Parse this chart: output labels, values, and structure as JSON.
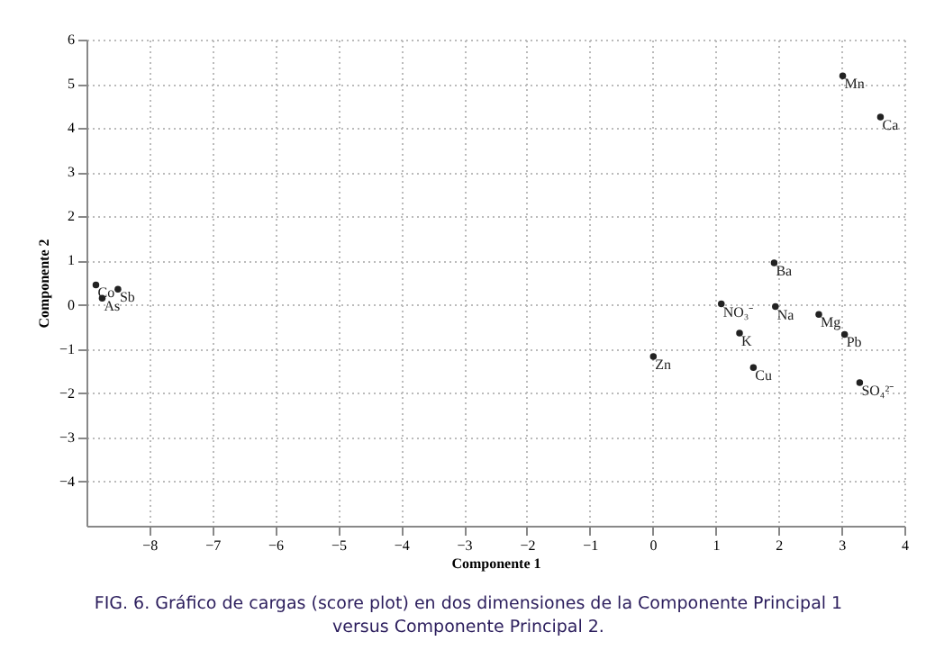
{
  "chart_data": {
    "type": "scatter",
    "xlabel": "Componente 1",
    "ylabel": "Componente 2",
    "x": [
      -8.85,
      -8.5,
      -8.75,
      3.02,
      3.62,
      1.93,
      1.09,
      1.95,
      2.64,
      3.05,
      1.38,
      0.01,
      1.6,
      3.29
    ],
    "series": [
      {
        "color": "#222222",
        "values": [
          0.45,
          0.35,
          0.15,
          5.18,
          4.25,
          0.95,
          0.02,
          -0.04,
          -0.22,
          -0.67,
          -0.64,
          -1.17,
          -1.42,
          -1.76
        ]
      }
    ],
    "xlim": [
      -9,
      4
    ],
    "xticks": [
      -8,
      -7,
      -6,
      -5,
      -4,
      -3,
      -2,
      -1,
      0,
      1,
      2,
      3,
      4
    ],
    "ylim": [
      -5,
      6
    ],
    "yticks": [
      -4,
      -3,
      -2,
      -1,
      0,
      1,
      2,
      3,
      4,
      5,
      6
    ],
    "grid": true,
    "marker": "circle",
    "annotations": [
      {
        "text": "Co",
        "x": -8.85,
        "y": 0.45
      },
      {
        "text": "Sb",
        "x": -8.5,
        "y": 0.35
      },
      {
        "text": "As",
        "x": -8.75,
        "y": 0.15
      },
      {
        "text": "Mn",
        "x": 3.02,
        "y": 5.18
      },
      {
        "text": "Ca",
        "x": 3.62,
        "y": 4.25
      },
      {
        "text": "Ba",
        "x": 1.93,
        "y": 0.95
      },
      {
        "text": "NO₃⁻",
        "x": 1.09,
        "y": 0.02
      },
      {
        "text": "Na",
        "x": 1.95,
        "y": -0.04
      },
      {
        "text": "Mg",
        "x": 2.64,
        "y": -0.22
      },
      {
        "text": "Pb",
        "x": 3.05,
        "y": -0.67
      },
      {
        "text": "K",
        "x": 1.38,
        "y": -0.64
      },
      {
        "text": "Zn",
        "x": 0.01,
        "y": -1.17
      },
      {
        "text": "Cu",
        "x": 1.6,
        "y": -1.42
      },
      {
        "text": "SO₄²⁻",
        "x": 3.29,
        "y": -1.76
      },
      "FIG. 6. Gráfico de cargas (score plot) en dos dimensiones de la Componente Principal 1 versus Componente Principal 2."
    ]
  }
}
